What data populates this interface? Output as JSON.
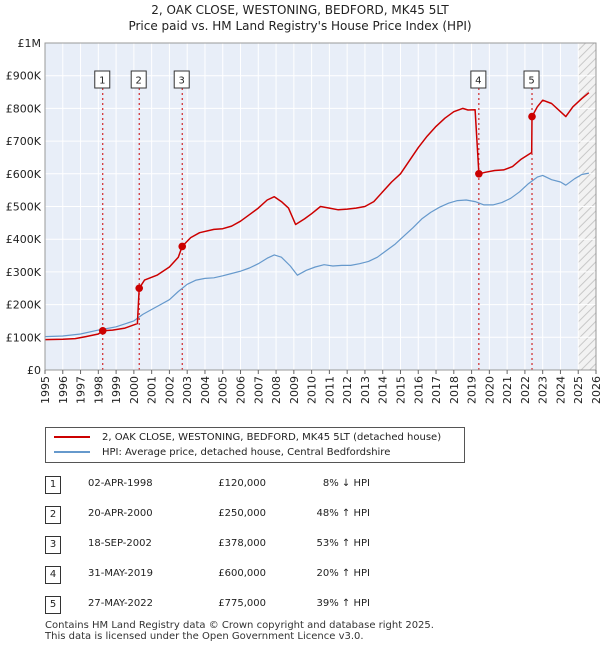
{
  "chart_data": {
    "type": "line",
    "title": "2, OAK CLOSE, WESTONING, BEDFORD, MK45 5LT",
    "subtitle": "Price paid vs. HM Land Registry's House Price Index (HPI)",
    "xlim": [
      1995,
      2026
    ],
    "ylim": [
      0,
      1000000
    ],
    "x_ticks": [
      1995,
      1996,
      1997,
      1998,
      1999,
      2000,
      2001,
      2002,
      2003,
      2004,
      2005,
      2006,
      2007,
      2008,
      2009,
      2010,
      2011,
      2012,
      2013,
      2014,
      2015,
      2016,
      2017,
      2018,
      2019,
      2020,
      2021,
      2022,
      2023,
      2024,
      2025,
      2026
    ],
    "y_ticks": [
      {
        "value": 0,
        "label": "£0"
      },
      {
        "value": 100000,
        "label": "£100K"
      },
      {
        "value": 200000,
        "label": "£200K"
      },
      {
        "value": 300000,
        "label": "£300K"
      },
      {
        "value": 400000,
        "label": "£400K"
      },
      {
        "value": 500000,
        "label": "£500K"
      },
      {
        "value": 600000,
        "label": "£600K"
      },
      {
        "value": 700000,
        "label": "£700K"
      },
      {
        "value": 800000,
        "label": "£800K"
      },
      {
        "value": 900000,
        "label": "£900K"
      },
      {
        "value": 1000000,
        "label": "£1M"
      }
    ],
    "grid": true,
    "series": [
      {
        "name": "2, OAK CLOSE, WESTONING, BEDFORD, MK45 5LT (detached house)",
        "color": "#cc0000",
        "points": [
          [
            1995.0,
            93000
          ],
          [
            1996.0,
            94000
          ],
          [
            1996.7,
            96000
          ],
          [
            1997.3,
            102000
          ],
          [
            1998.0,
            110000
          ],
          [
            1998.25,
            120000
          ],
          [
            1998.8,
            122000
          ],
          [
            1999.5,
            128000
          ],
          [
            2000.2,
            142000
          ],
          [
            2000.3,
            250000
          ],
          [
            2000.6,
            275000
          ],
          [
            2001.3,
            290000
          ],
          [
            2002.0,
            315000
          ],
          [
            2002.5,
            345000
          ],
          [
            2002.72,
            378000
          ],
          [
            2003.2,
            405000
          ],
          [
            2003.7,
            420000
          ],
          [
            2004.5,
            430000
          ],
          [
            2005.0,
            432000
          ],
          [
            2005.5,
            440000
          ],
          [
            2006.0,
            455000
          ],
          [
            2006.5,
            475000
          ],
          [
            2007.0,
            495000
          ],
          [
            2007.5,
            520000
          ],
          [
            2007.9,
            530000
          ],
          [
            2008.3,
            515000
          ],
          [
            2008.7,
            495000
          ],
          [
            2009.1,
            445000
          ],
          [
            2009.6,
            462000
          ],
          [
            2010.0,
            478000
          ],
          [
            2010.5,
            500000
          ],
          [
            2011.0,
            495000
          ],
          [
            2011.5,
            490000
          ],
          [
            2012.0,
            492000
          ],
          [
            2012.5,
            495000
          ],
          [
            2013.0,
            500000
          ],
          [
            2013.5,
            515000
          ],
          [
            2014.0,
            545000
          ],
          [
            2014.5,
            575000
          ],
          [
            2015.0,
            600000
          ],
          [
            2015.5,
            640000
          ],
          [
            2016.0,
            680000
          ],
          [
            2016.5,
            715000
          ],
          [
            2017.0,
            745000
          ],
          [
            2017.5,
            770000
          ],
          [
            2018.0,
            790000
          ],
          [
            2018.5,
            800000
          ],
          [
            2018.8,
            795000
          ],
          [
            2019.2,
            796000
          ],
          [
            2019.41,
            600000
          ],
          [
            2019.8,
            605000
          ],
          [
            2020.3,
            610000
          ],
          [
            2020.8,
            612000
          ],
          [
            2021.3,
            622000
          ],
          [
            2021.8,
            645000
          ],
          [
            2022.38,
            665000
          ],
          [
            2022.4,
            775000
          ],
          [
            2022.7,
            805000
          ],
          [
            2023.0,
            825000
          ],
          [
            2023.5,
            815000
          ],
          [
            2024.0,
            790000
          ],
          [
            2024.3,
            775000
          ],
          [
            2024.7,
            805000
          ],
          [
            2025.2,
            830000
          ],
          [
            2025.6,
            848000
          ]
        ]
      },
      {
        "name": "HPI: Average price, detached house, Central Bedfordshire",
        "color": "#6699cc",
        "points": [
          [
            1995.0,
            102000
          ],
          [
            1996.0,
            104000
          ],
          [
            1997.0,
            110000
          ],
          [
            1998.0,
            122000
          ],
          [
            1999.0,
            132000
          ],
          [
            2000.0,
            150000
          ],
          [
            2000.5,
            170000
          ],
          [
            2001.0,
            185000
          ],
          [
            2001.5,
            200000
          ],
          [
            2002.0,
            215000
          ],
          [
            2002.5,
            240000
          ],
          [
            2003.0,
            262000
          ],
          [
            2003.5,
            275000
          ],
          [
            2004.0,
            280000
          ],
          [
            2004.5,
            282000
          ],
          [
            2005.0,
            288000
          ],
          [
            2005.5,
            295000
          ],
          [
            2006.0,
            302000
          ],
          [
            2006.5,
            312000
          ],
          [
            2007.0,
            325000
          ],
          [
            2007.5,
            342000
          ],
          [
            2007.9,
            352000
          ],
          [
            2008.3,
            345000
          ],
          [
            2008.8,
            318000
          ],
          [
            2009.2,
            290000
          ],
          [
            2009.7,
            305000
          ],
          [
            2010.2,
            315000
          ],
          [
            2010.7,
            322000
          ],
          [
            2011.2,
            318000
          ],
          [
            2011.7,
            320000
          ],
          [
            2012.2,
            320000
          ],
          [
            2012.7,
            325000
          ],
          [
            2013.2,
            332000
          ],
          [
            2013.7,
            345000
          ],
          [
            2014.2,
            365000
          ],
          [
            2014.7,
            385000
          ],
          [
            2015.2,
            410000
          ],
          [
            2015.7,
            435000
          ],
          [
            2016.2,
            462000
          ],
          [
            2016.7,
            482000
          ],
          [
            2017.2,
            498000
          ],
          [
            2017.7,
            510000
          ],
          [
            2018.2,
            518000
          ],
          [
            2018.7,
            520000
          ],
          [
            2019.2,
            515000
          ],
          [
            2019.7,
            505000
          ],
          [
            2020.2,
            505000
          ],
          [
            2020.7,
            512000
          ],
          [
            2021.2,
            525000
          ],
          [
            2021.7,
            545000
          ],
          [
            2022.2,
            570000
          ],
          [
            2022.7,
            590000
          ],
          [
            2023.0,
            595000
          ],
          [
            2023.5,
            582000
          ],
          [
            2024.0,
            575000
          ],
          [
            2024.3,
            565000
          ],
          [
            2024.8,
            585000
          ],
          [
            2025.2,
            598000
          ],
          [
            2025.6,
            602000
          ]
        ]
      }
    ],
    "sales": [
      {
        "num": "1",
        "date": "02-APR-1998",
        "price": "£120,000",
        "hpi": "8% ↓ HPI",
        "x": 1998.25,
        "y": 120000
      },
      {
        "num": "2",
        "date": "20-APR-2000",
        "price": "£250,000",
        "hpi": "48% ↑ HPI",
        "x": 2000.3,
        "y": 250000
      },
      {
        "num": "3",
        "date": "18-SEP-2002",
        "price": "£378,000",
        "hpi": "53% ↑ HPI",
        "x": 2002.72,
        "y": 378000
      },
      {
        "num": "4",
        "date": "31-MAY-2019",
        "price": "£600,000",
        "hpi": "20% ↑ HPI",
        "x": 2019.41,
        "y": 600000
      },
      {
        "num": "5",
        "date": "27-MAY-2022",
        "price": "£775,000",
        "hpi": "39% ↑ HPI",
        "x": 2022.4,
        "y": 775000
      }
    ],
    "future_from": 2025.0
  },
  "footer": {
    "line1": "Contains HM Land Registry data © Crown copyright and database right 2025.",
    "line2": "This data is licensed under the Open Government Licence v3.0."
  }
}
